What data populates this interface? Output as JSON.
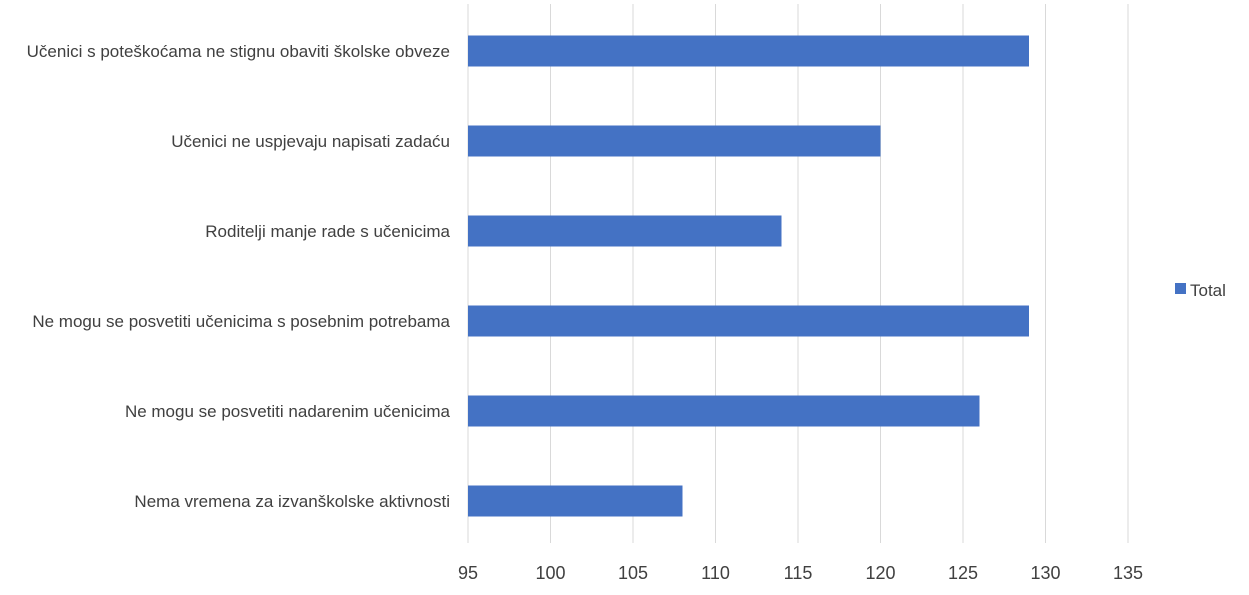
{
  "chart_data": {
    "type": "bar",
    "orientation": "horizontal",
    "categories": [
      "Učenici s poteškoćama ne stignu obaviti školske obveze",
      "Učenici ne uspjevaju napisati zadaću",
      "Roditelji manje rade s učenicima",
      "Ne mogu se posvetiti učenicima s posebnim potrebama",
      "Ne mogu se posvetiti nadarenim učenicima ",
      "Nema vremena za izvanškolske aktivnosti"
    ],
    "series": [
      {
        "name": "Total",
        "values": [
          129,
          120,
          114,
          129,
          126,
          108
        ],
        "color": "#4472c4"
      }
    ],
    "xlim": [
      95,
      135
    ],
    "xticks": [
      95,
      100,
      105,
      110,
      115,
      120,
      125,
      130,
      135
    ],
    "grid": "vertical",
    "legend": "right"
  }
}
